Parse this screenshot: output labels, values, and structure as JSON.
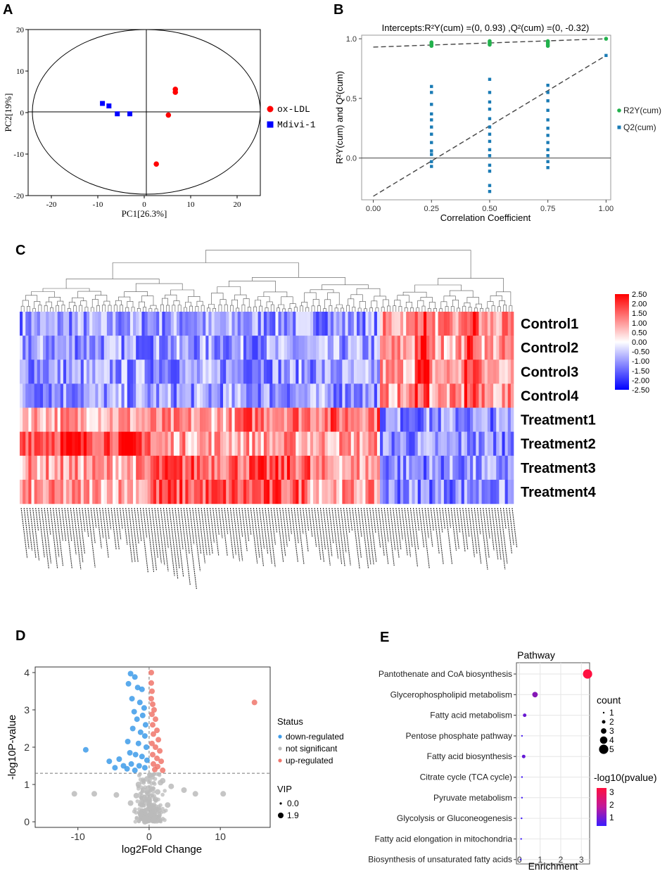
{
  "panels": {
    "A": "A",
    "B": "B",
    "C": "C",
    "D": "D",
    "E": "E"
  },
  "chart_data": [
    {
      "id": "A",
      "type": "scatter",
      "xlabel": "PC1[26.3%]",
      "ylabel": "PC2[19%]",
      "xlim": [
        -25,
        25
      ],
      "ylim": [
        -20,
        20
      ],
      "xticks": [
        -20,
        -10,
        0,
        10,
        20
      ],
      "yticks": [
        -20,
        -10,
        0,
        10,
        20
      ],
      "legend_position": "right",
      "series": [
        {
          "name": "ox-LDL",
          "color": "#ff0000",
          "marker": "circle",
          "points": [
            [
              6.7,
              5.6
            ],
            [
              6.7,
              4.9
            ],
            [
              5.2,
              -0.6
            ],
            [
              2.6,
              -12.4
            ]
          ]
        },
        {
          "name": "Mdivi-1",
          "color": "#0000ff",
          "marker": "square",
          "points": [
            [
              -9.0,
              2.2
            ],
            [
              -7.6,
              1.6
            ],
            [
              -5.8,
              -0.3
            ],
            [
              -3.1,
              -0.3
            ]
          ]
        }
      ]
    },
    {
      "id": "B",
      "type": "scatter",
      "title": "Intercepts:R²Y(cum) =(0, 0.93) ,Q²(cum) =(0, -0.32)",
      "xlabel": "Correlation Coefficient",
      "ylabel": "R²Y(cum) and Q²(cum)",
      "xlim": [
        -0.05,
        1.02
      ],
      "ylim": [
        -0.35,
        1.03
      ],
      "xticks": [
        "0.00",
        "0.25",
        "0.50",
        "0.75",
        "1.00"
      ],
      "yticks": [
        "0.0",
        "0.5",
        "1.0"
      ],
      "legend_position": "right",
      "series": [
        {
          "name": "R2Y(cum)",
          "color": "#22b14c",
          "marker": "circle",
          "points": [
            [
              0.25,
              0.94
            ],
            [
              0.25,
              0.95
            ],
            [
              0.25,
              0.96
            ],
            [
              0.25,
              0.97
            ],
            [
              0.5,
              0.95
            ],
            [
              0.5,
              0.96
            ],
            [
              0.5,
              0.97
            ],
            [
              0.5,
              0.98
            ],
            [
              0.75,
              0.94
            ],
            [
              0.75,
              0.955
            ],
            [
              0.75,
              0.97
            ],
            [
              0.75,
              0.98
            ],
            [
              1.0,
              1.0
            ]
          ]
        },
        {
          "name": "Q2(cum)",
          "color": "#1a7bb5",
          "marker": "square",
          "points": [
            [
              0.25,
              0.6
            ],
            [
              0.25,
              0.55
            ],
            [
              0.25,
              0.45
            ],
            [
              0.25,
              0.37
            ],
            [
              0.25,
              0.32
            ],
            [
              0.25,
              0.26
            ],
            [
              0.25,
              0.2
            ],
            [
              0.25,
              0.13
            ],
            [
              0.25,
              0.06
            ],
            [
              0.25,
              0.03
            ],
            [
              0.25,
              -0.03
            ],
            [
              0.25,
              -0.07
            ],
            [
              0.5,
              0.66
            ],
            [
              0.5,
              0.55
            ],
            [
              0.5,
              0.47
            ],
            [
              0.5,
              0.41
            ],
            [
              0.5,
              0.33
            ],
            [
              0.5,
              0.26
            ],
            [
              0.5,
              0.2
            ],
            [
              0.5,
              0.14
            ],
            [
              0.5,
              0.07
            ],
            [
              0.5,
              0.02
            ],
            [
              0.5,
              -0.06
            ],
            [
              0.5,
              -0.11
            ],
            [
              0.5,
              -0.23
            ],
            [
              0.5,
              -0.28
            ],
            [
              0.75,
              0.61
            ],
            [
              0.75,
              0.55
            ],
            [
              0.75,
              0.48
            ],
            [
              0.75,
              0.4
            ],
            [
              0.75,
              0.32
            ],
            [
              0.75,
              0.25
            ],
            [
              0.75,
              0.19
            ],
            [
              0.75,
              0.13
            ],
            [
              0.75,
              0.07
            ],
            [
              0.75,
              0.02
            ],
            [
              0.75,
              -0.03
            ],
            [
              0.75,
              -0.08
            ],
            [
              1.0,
              0.86
            ]
          ]
        }
      ],
      "lines": [
        {
          "name": "R2Y regression",
          "from": [
            0,
            0.93
          ],
          "to": [
            1.0,
            1.0
          ]
        },
        {
          "name": "Q2 regression",
          "from": [
            0,
            -0.32
          ],
          "to": [
            1.0,
            0.86
          ]
        }
      ]
    },
    {
      "id": "C",
      "type": "heatmap",
      "rows": [
        "Control1",
        "Control2",
        "Control3",
        "Control4",
        "Treatment1",
        "Treatment2",
        "Treatment3",
        "Treatment4"
      ],
      "n_columns": 170,
      "colorbar_ticks": [
        "2.50",
        "2.00",
        "1.50",
        "1.00",
        "0.50",
        "0.00",
        "-0.50",
        "-1.00",
        "-1.50",
        "-2.00",
        "-2.50"
      ],
      "color_range": [
        -2.5,
        2.5
      ],
      "column_label_note": "~170 rotated metabolite names, illegible at this resolution",
      "cluster_split_column": 124
    },
    {
      "id": "D",
      "type": "scatter",
      "xlabel": "log2Fold Change",
      "ylabel": "-log10P-value",
      "xlim": [
        -16,
        17
      ],
      "ylim": [
        -0.15,
        4.15
      ],
      "xticks": [
        "-10",
        "0",
        "10"
      ],
      "yticks": [
        "0",
        "1",
        "2",
        "3",
        "4"
      ],
      "threshold_y": 1.3,
      "legend_title": "Status",
      "legend": [
        "down-regulated",
        "not significant",
        "up-regulated"
      ],
      "size_legend_title": "VIP",
      "size_legend": [
        "0.0",
        "1.9"
      ],
      "series": [
        {
          "name": "down-regulated",
          "color": "#3d9be9",
          "points": [
            [
              -2.6,
              3.97
            ],
            [
              -2.0,
              3.88
            ],
            [
              -2.9,
              3.7
            ],
            [
              -1.6,
              3.6
            ],
            [
              -1.0,
              3.55
            ],
            [
              -2.4,
              3.3
            ],
            [
              -1.3,
              3.2
            ],
            [
              -0.7,
              3.05
            ],
            [
              -2.1,
              2.95
            ],
            [
              -0.9,
              2.85
            ],
            [
              -1.7,
              2.75
            ],
            [
              -0.5,
              2.6
            ],
            [
              -2.3,
              2.5
            ],
            [
              -1.2,
              2.4
            ],
            [
              -0.6,
              2.3
            ],
            [
              -3.0,
              2.15
            ],
            [
              -1.5,
              2.1
            ],
            [
              -0.4,
              2.0
            ],
            [
              -2.7,
              1.85
            ],
            [
              -1.9,
              1.8
            ],
            [
              -1.0,
              1.75
            ],
            [
              -0.3,
              1.65
            ],
            [
              -4.2,
              1.68
            ],
            [
              -3.6,
              1.5
            ],
            [
              -2.5,
              1.55
            ],
            [
              -1.4,
              1.5
            ],
            [
              -0.6,
              1.45
            ],
            [
              -4.8,
              1.45
            ],
            [
              -3.1,
              1.42
            ],
            [
              -2.0,
              1.38
            ],
            [
              -8.9,
              1.93
            ],
            [
              -5.6,
              1.62
            ]
          ]
        },
        {
          "name": "not significant",
          "color": "#bbbbbb",
          "points": [
            [
              -10.5,
              0.75
            ],
            [
              -7.7,
              0.75
            ],
            [
              -4.6,
              0.72
            ],
            [
              6.5,
              0.75
            ],
            [
              10.4,
              0.75
            ],
            [
              4.9,
              0.85
            ],
            [
              3.1,
              0.95
            ],
            [
              1.9,
              1.1
            ],
            [
              2.6,
              0.45
            ],
            [
              -2.6,
              0.5
            ],
            [
              -0.2,
              0.1
            ],
            [
              0.2,
              0.2
            ],
            [
              -0.5,
              0.3
            ],
            [
              0.5,
              0.4
            ],
            [
              -1.0,
              0.55
            ],
            [
              0.9,
              0.6
            ],
            [
              -0.8,
              0.85
            ],
            [
              1.2,
              0.8
            ],
            [
              -1.5,
              1.0
            ],
            [
              1.6,
              1.05
            ],
            [
              -0.3,
              1.15
            ],
            [
              0.4,
              1.2
            ],
            [
              0.0,
              0.6
            ],
            [
              -0.1,
              0.9
            ],
            [
              0.1,
              1.25
            ],
            [
              -1.8,
              0.7
            ],
            [
              1.4,
              0.3
            ],
            [
              -1.2,
              0.2
            ],
            [
              0.7,
              0.05
            ],
            [
              -0.6,
              0.0
            ]
          ]
        },
        {
          "name": "up-regulated",
          "color": "#f0756b",
          "points": [
            [
              0.3,
              4.0
            ],
            [
              0.3,
              3.72
            ],
            [
              0.4,
              3.5
            ],
            [
              0.3,
              3.3
            ],
            [
              0.5,
              3.15
            ],
            [
              0.7,
              3.0
            ],
            [
              0.4,
              2.88
            ],
            [
              0.9,
              2.75
            ],
            [
              0.5,
              2.6
            ],
            [
              1.1,
              2.45
            ],
            [
              0.6,
              2.35
            ],
            [
              1.3,
              2.2
            ],
            [
              0.4,
              2.1
            ],
            [
              0.9,
              2.0
            ],
            [
              1.5,
              1.9
            ],
            [
              0.5,
              1.8
            ],
            [
              1.1,
              1.7
            ],
            [
              1.7,
              1.62
            ],
            [
              0.6,
              1.55
            ],
            [
              1.2,
              1.48
            ],
            [
              0.8,
              1.4
            ],
            [
              1.9,
              1.38
            ],
            [
              14.8,
              3.2
            ]
          ]
        }
      ]
    },
    {
      "id": "E",
      "type": "scatter",
      "title": "Pathway",
      "xlabel": "Enrichment",
      "xlim": [
        -0.15,
        3.4
      ],
      "xticks": [
        "0",
        "1",
        "2",
        "3"
      ],
      "categories": [
        "Pantothenate and CoA biosynthesis",
        "Glycerophospholipid metabolism",
        "Fatty acid metabolism",
        "Pentose phosphate pathway",
        "Fatty acid biosynthesis",
        "Citrate cycle (TCA cycle)",
        "Pyruvate metabolism",
        "Glycolysis or Gluconeogenesis",
        "Fatty acid elongation in mitochondria",
        "Biosynthesis of unsaturated fatty acids"
      ],
      "enrichment": [
        3.3,
        0.75,
        0.25,
        0.12,
        0.2,
        0.12,
        0.12,
        0.1,
        0.08,
        0.05
      ],
      "count": [
        5,
        3,
        2,
        1,
        2,
        1,
        1,
        1,
        1,
        1
      ],
      "neg_log10_pvalue": [
        3.0,
        1.7,
        1.4,
        1.05,
        1.35,
        1.0,
        1.0,
        0.95,
        0.95,
        0.9
      ],
      "size_legend_title": "count",
      "size_legend": [
        "1",
        "2",
        "3",
        "4",
        "5"
      ],
      "color_legend_title": "-log10(pvalue)",
      "color_legend_ticks": [
        "3",
        "2",
        "1"
      ]
    }
  ]
}
